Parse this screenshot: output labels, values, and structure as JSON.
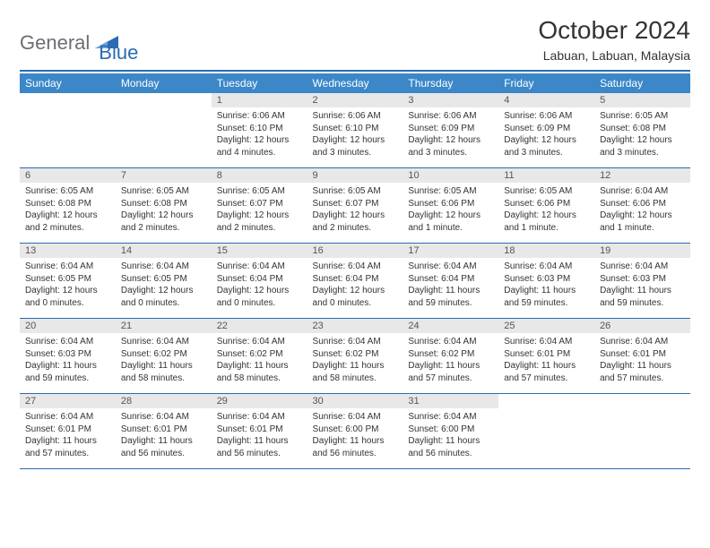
{
  "logo": {
    "word1": "General",
    "word2": "Blue"
  },
  "title": "October 2024",
  "location": "Labuan, Labuan, Malaysia",
  "colors": {
    "brand_blue": "#2a6bb3",
    "header_blue": "#3b87c8",
    "logo_gray": "#6b6e73",
    "daynum_bg": "#e8e8e8",
    "text": "#333333"
  },
  "fonts": {
    "title_size": 28,
    "location_size": 14,
    "day_header_size": 12,
    "daynum_size": 11,
    "body_size": 10
  },
  "day_headers": [
    "Sunday",
    "Monday",
    "Tuesday",
    "Wednesday",
    "Thursday",
    "Friday",
    "Saturday"
  ],
  "weeks": [
    [
      {
        "num": "",
        "l1": "",
        "l2": "",
        "l3": "",
        "l4": "",
        "empty": true
      },
      {
        "num": "",
        "l1": "",
        "l2": "",
        "l3": "",
        "l4": "",
        "empty": true
      },
      {
        "num": "1",
        "l1": "Sunrise: 6:06 AM",
        "l2": "Sunset: 6:10 PM",
        "l3": "Daylight: 12 hours",
        "l4": "and 4 minutes."
      },
      {
        "num": "2",
        "l1": "Sunrise: 6:06 AM",
        "l2": "Sunset: 6:10 PM",
        "l3": "Daylight: 12 hours",
        "l4": "and 3 minutes."
      },
      {
        "num": "3",
        "l1": "Sunrise: 6:06 AM",
        "l2": "Sunset: 6:09 PM",
        "l3": "Daylight: 12 hours",
        "l4": "and 3 minutes."
      },
      {
        "num": "4",
        "l1": "Sunrise: 6:06 AM",
        "l2": "Sunset: 6:09 PM",
        "l3": "Daylight: 12 hours",
        "l4": "and 3 minutes."
      },
      {
        "num": "5",
        "l1": "Sunrise: 6:05 AM",
        "l2": "Sunset: 6:08 PM",
        "l3": "Daylight: 12 hours",
        "l4": "and 3 minutes."
      }
    ],
    [
      {
        "num": "6",
        "l1": "Sunrise: 6:05 AM",
        "l2": "Sunset: 6:08 PM",
        "l3": "Daylight: 12 hours",
        "l4": "and 2 minutes."
      },
      {
        "num": "7",
        "l1": "Sunrise: 6:05 AM",
        "l2": "Sunset: 6:08 PM",
        "l3": "Daylight: 12 hours",
        "l4": "and 2 minutes."
      },
      {
        "num": "8",
        "l1": "Sunrise: 6:05 AM",
        "l2": "Sunset: 6:07 PM",
        "l3": "Daylight: 12 hours",
        "l4": "and 2 minutes."
      },
      {
        "num": "9",
        "l1": "Sunrise: 6:05 AM",
        "l2": "Sunset: 6:07 PM",
        "l3": "Daylight: 12 hours",
        "l4": "and 2 minutes."
      },
      {
        "num": "10",
        "l1": "Sunrise: 6:05 AM",
        "l2": "Sunset: 6:06 PM",
        "l3": "Daylight: 12 hours",
        "l4": "and 1 minute."
      },
      {
        "num": "11",
        "l1": "Sunrise: 6:05 AM",
        "l2": "Sunset: 6:06 PM",
        "l3": "Daylight: 12 hours",
        "l4": "and 1 minute."
      },
      {
        "num": "12",
        "l1": "Sunrise: 6:04 AM",
        "l2": "Sunset: 6:06 PM",
        "l3": "Daylight: 12 hours",
        "l4": "and 1 minute."
      }
    ],
    [
      {
        "num": "13",
        "l1": "Sunrise: 6:04 AM",
        "l2": "Sunset: 6:05 PM",
        "l3": "Daylight: 12 hours",
        "l4": "and 0 minutes."
      },
      {
        "num": "14",
        "l1": "Sunrise: 6:04 AM",
        "l2": "Sunset: 6:05 PM",
        "l3": "Daylight: 12 hours",
        "l4": "and 0 minutes."
      },
      {
        "num": "15",
        "l1": "Sunrise: 6:04 AM",
        "l2": "Sunset: 6:04 PM",
        "l3": "Daylight: 12 hours",
        "l4": "and 0 minutes."
      },
      {
        "num": "16",
        "l1": "Sunrise: 6:04 AM",
        "l2": "Sunset: 6:04 PM",
        "l3": "Daylight: 12 hours",
        "l4": "and 0 minutes."
      },
      {
        "num": "17",
        "l1": "Sunrise: 6:04 AM",
        "l2": "Sunset: 6:04 PM",
        "l3": "Daylight: 11 hours",
        "l4": "and 59 minutes."
      },
      {
        "num": "18",
        "l1": "Sunrise: 6:04 AM",
        "l2": "Sunset: 6:03 PM",
        "l3": "Daylight: 11 hours",
        "l4": "and 59 minutes."
      },
      {
        "num": "19",
        "l1": "Sunrise: 6:04 AM",
        "l2": "Sunset: 6:03 PM",
        "l3": "Daylight: 11 hours",
        "l4": "and 59 minutes."
      }
    ],
    [
      {
        "num": "20",
        "l1": "Sunrise: 6:04 AM",
        "l2": "Sunset: 6:03 PM",
        "l3": "Daylight: 11 hours",
        "l4": "and 59 minutes."
      },
      {
        "num": "21",
        "l1": "Sunrise: 6:04 AM",
        "l2": "Sunset: 6:02 PM",
        "l3": "Daylight: 11 hours",
        "l4": "and 58 minutes."
      },
      {
        "num": "22",
        "l1": "Sunrise: 6:04 AM",
        "l2": "Sunset: 6:02 PM",
        "l3": "Daylight: 11 hours",
        "l4": "and 58 minutes."
      },
      {
        "num": "23",
        "l1": "Sunrise: 6:04 AM",
        "l2": "Sunset: 6:02 PM",
        "l3": "Daylight: 11 hours",
        "l4": "and 58 minutes."
      },
      {
        "num": "24",
        "l1": "Sunrise: 6:04 AM",
        "l2": "Sunset: 6:02 PM",
        "l3": "Daylight: 11 hours",
        "l4": "and 57 minutes."
      },
      {
        "num": "25",
        "l1": "Sunrise: 6:04 AM",
        "l2": "Sunset: 6:01 PM",
        "l3": "Daylight: 11 hours",
        "l4": "and 57 minutes."
      },
      {
        "num": "26",
        "l1": "Sunrise: 6:04 AM",
        "l2": "Sunset: 6:01 PM",
        "l3": "Daylight: 11 hours",
        "l4": "and 57 minutes."
      }
    ],
    [
      {
        "num": "27",
        "l1": "Sunrise: 6:04 AM",
        "l2": "Sunset: 6:01 PM",
        "l3": "Daylight: 11 hours",
        "l4": "and 57 minutes."
      },
      {
        "num": "28",
        "l1": "Sunrise: 6:04 AM",
        "l2": "Sunset: 6:01 PM",
        "l3": "Daylight: 11 hours",
        "l4": "and 56 minutes."
      },
      {
        "num": "29",
        "l1": "Sunrise: 6:04 AM",
        "l2": "Sunset: 6:01 PM",
        "l3": "Daylight: 11 hours",
        "l4": "and 56 minutes."
      },
      {
        "num": "30",
        "l1": "Sunrise: 6:04 AM",
        "l2": "Sunset: 6:00 PM",
        "l3": "Daylight: 11 hours",
        "l4": "and 56 minutes."
      },
      {
        "num": "31",
        "l1": "Sunrise: 6:04 AM",
        "l2": "Sunset: 6:00 PM",
        "l3": "Daylight: 11 hours",
        "l4": "and 56 minutes."
      },
      {
        "num": "",
        "l1": "",
        "l2": "",
        "l3": "",
        "l4": "",
        "empty": true
      },
      {
        "num": "",
        "l1": "",
        "l2": "",
        "l3": "",
        "l4": "",
        "empty": true
      }
    ]
  ]
}
